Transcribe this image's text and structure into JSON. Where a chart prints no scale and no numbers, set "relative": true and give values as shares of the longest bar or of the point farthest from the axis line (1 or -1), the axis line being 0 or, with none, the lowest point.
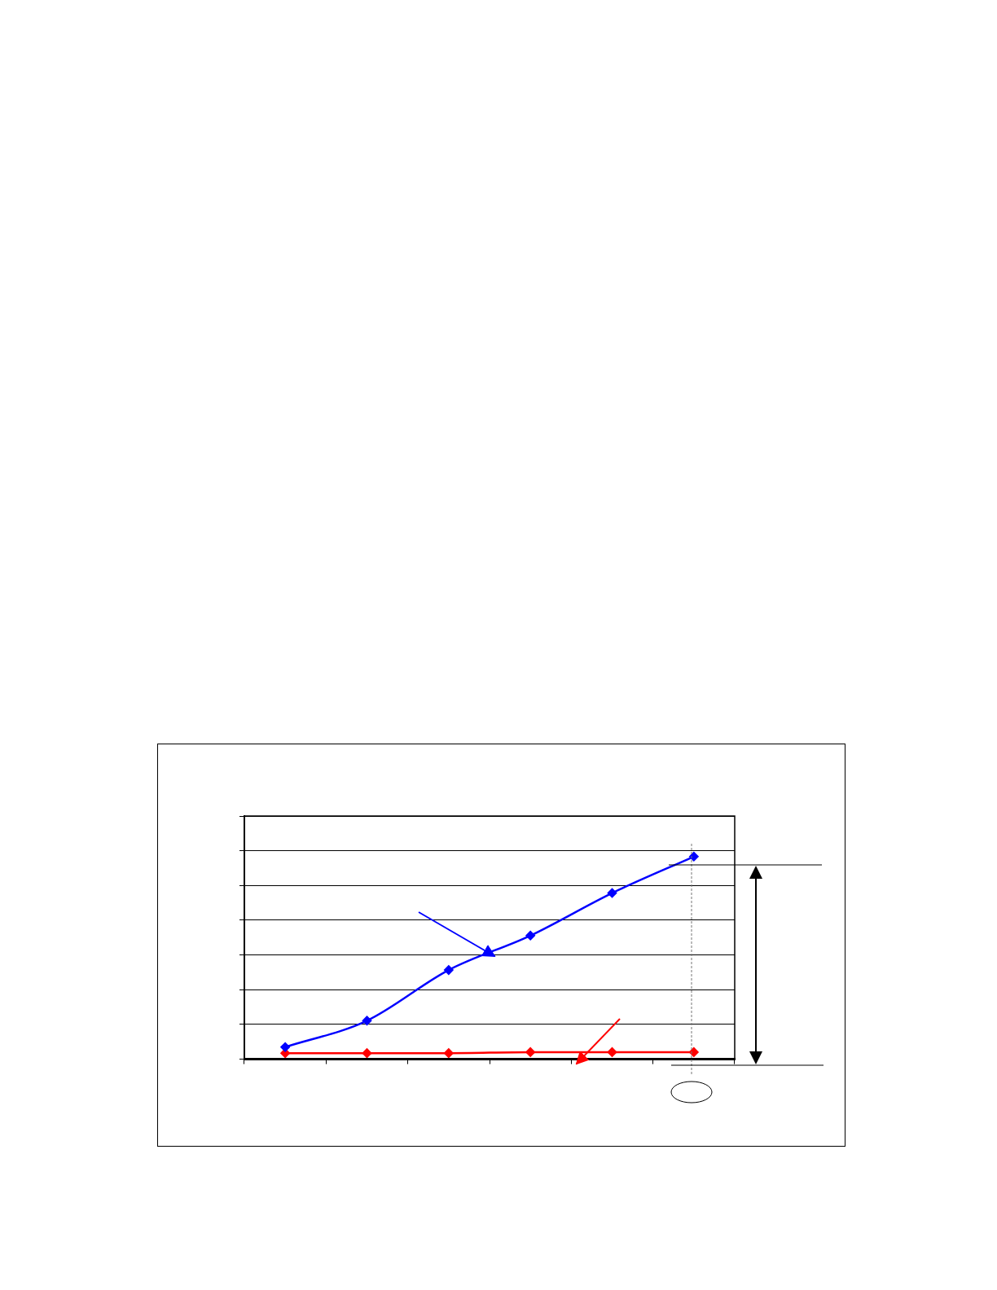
{
  "chart_data": {
    "type": "line",
    "relative": true,
    "categories": [
      null,
      null,
      null,
      null,
      null,
      null
    ],
    "series": [
      {
        "color": "#0000ff",
        "values": [
          0.06,
          0.19,
          0.44,
          0.61,
          0.82,
          1
        ]
      },
      {
        "color": "#ff0000",
        "values": [
          0.03,
          0.03,
          0.03,
          0.035,
          0.035,
          0.035
        ]
      }
    ],
    "marker": "diamond",
    "line_style": "solid",
    "grid": "y"
  }
}
